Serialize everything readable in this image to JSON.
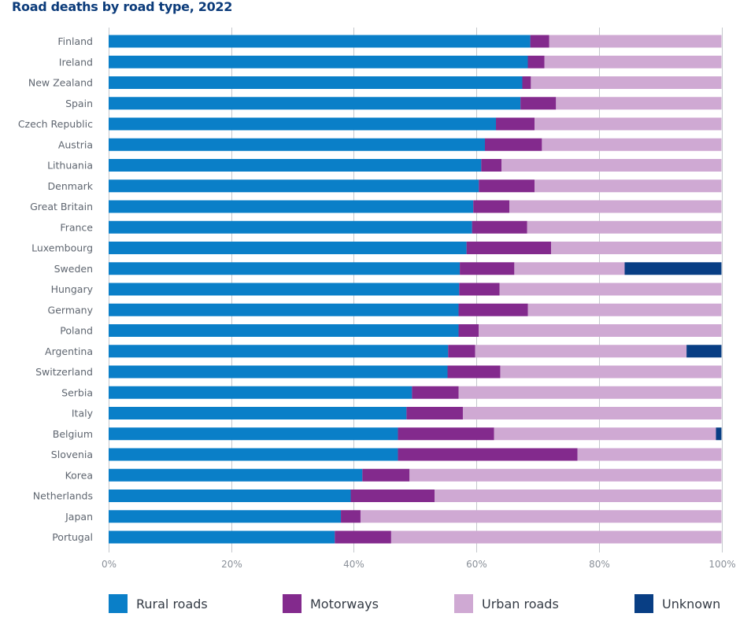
{
  "chart_data": {
    "type": "bar",
    "orientation": "horizontal",
    "stacked": "percent",
    "title": "Road deaths by road type, 2022",
    "xlabel": "",
    "ylabel": "",
    "xlim": [
      0,
      100
    ],
    "x_ticks": [
      "0%",
      "20%",
      "40%",
      "60%",
      "80%",
      "100%"
    ],
    "grid": true,
    "legend_position": "bottom",
    "categories": [
      "Finland",
      "Ireland",
      "New Zealand",
      "Spain",
      "Czech Republic",
      "Austria",
      "Lithuania",
      "Denmark",
      "Great Britain",
      "France",
      "Luxembourg",
      "Sweden",
      "Hungary",
      "Germany",
      "Poland",
      "Argentina",
      "Switzerland",
      "Serbia",
      "Italy",
      "Belgium",
      "Slovenia",
      "Korea",
      "Netherlands",
      "Japan",
      "Portugal"
    ],
    "series": [
      {
        "name": "Rural roads",
        "color": "#0a7fc8",
        "values": [
          68.8,
          68.4,
          67.5,
          67.2,
          63.2,
          61.4,
          60.8,
          60.4,
          59.5,
          59.3,
          58.4,
          57.3,
          57.2,
          57.1,
          57.1,
          55.4,
          55.3,
          49.5,
          48.6,
          47.2,
          47.2,
          41.4,
          39.5,
          37.9,
          36.9
        ]
      },
      {
        "name": "Motorways",
        "color": "#832a8d",
        "values": [
          3.1,
          2.7,
          1.4,
          5.8,
          6.3,
          9.3,
          3.3,
          9.1,
          5.9,
          9.0,
          13.8,
          8.9,
          6.6,
          11.3,
          3.3,
          4.4,
          8.6,
          7.6,
          9.2,
          15.7,
          29.3,
          7.7,
          13.7,
          3.2,
          9.2
        ]
      },
      {
        "name": "Urban roads",
        "color": "#cfa9d3",
        "values": [
          28.1,
          28.9,
          31.1,
          27.0,
          30.5,
          29.3,
          35.9,
          30.5,
          34.6,
          31.7,
          27.8,
          18.0,
          36.2,
          31.6,
          39.6,
          34.5,
          36.1,
          42.9,
          42.2,
          36.2,
          23.5,
          50.9,
          46.8,
          58.9,
          53.9
        ]
      },
      {
        "name": "Unknown",
        "color": "#083e84",
        "values": [
          0,
          0,
          0,
          0,
          0,
          0,
          0,
          0,
          0,
          0,
          0,
          15.8,
          0,
          0,
          0,
          5.7,
          0,
          0,
          0,
          0.9,
          0,
          0,
          0,
          0,
          0
        ]
      }
    ]
  },
  "colors": {
    "title": "#0b3b7a",
    "gridline": "#c4c7cc"
  }
}
